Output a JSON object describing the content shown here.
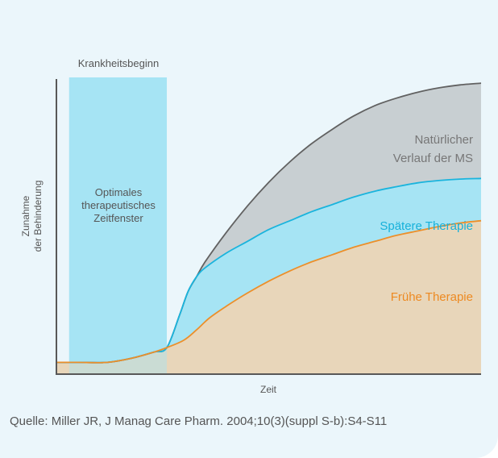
{
  "chart_data": {
    "type": "area",
    "title": "",
    "xlabel": "Zeit",
    "ylabel": [
      "Zunahme",
      "der Behinderung"
    ],
    "xlim": [
      0,
      100
    ],
    "ylim": [
      0,
      100
    ],
    "window": {
      "name": "window",
      "x_range": [
        3,
        26
      ],
      "top_label": "Krankheitsbeginn",
      "label_lines": [
        "Optimales",
        "therapeutisches",
        "Zeitfenster"
      ],
      "color": "#a6e4f4"
    },
    "series": [
      {
        "name": "natural",
        "label_lines": [
          "Natürlicher",
          "Verlauf der MS"
        ],
        "line_color": "#616161",
        "fill_color": "#c8cfd2",
        "text_color": "#777777",
        "points": [
          [
            0,
            4
          ],
          [
            5,
            4
          ],
          [
            12,
            4
          ],
          [
            18,
            5.5
          ],
          [
            23,
            7.5
          ],
          [
            26,
            9
          ],
          [
            29,
            20
          ],
          [
            31,
            28
          ],
          [
            33,
            33
          ],
          [
            35,
            38
          ],
          [
            40,
            48
          ],
          [
            45,
            57
          ],
          [
            50,
            65
          ],
          [
            55,
            72
          ],
          [
            60,
            78
          ],
          [
            65,
            83
          ],
          [
            70,
            87.5
          ],
          [
            75,
            91
          ],
          [
            80,
            93.5
          ],
          [
            85,
            95.5
          ],
          [
            90,
            97
          ],
          [
            95,
            98
          ],
          [
            100,
            98.6
          ]
        ]
      },
      {
        "name": "later",
        "label_lines": [
          "Spätere Therapie"
        ],
        "line_color": "#1ab4dd",
        "fill_color": "#a6e4f4",
        "text_color": "#17b1da",
        "points": [
          [
            0,
            4
          ],
          [
            5,
            4
          ],
          [
            12,
            4
          ],
          [
            18,
            5.5
          ],
          [
            23,
            7.5
          ],
          [
            26,
            9
          ],
          [
            29,
            20
          ],
          [
            31,
            28
          ],
          [
            33,
            33
          ],
          [
            35,
            36
          ],
          [
            40,
            41
          ],
          [
            45,
            45
          ],
          [
            50,
            49
          ],
          [
            55,
            52
          ],
          [
            60,
            55
          ],
          [
            65,
            57.5
          ],
          [
            70,
            60
          ],
          [
            75,
            62
          ],
          [
            80,
            63.5
          ],
          [
            85,
            64.8
          ],
          [
            90,
            65.6
          ],
          [
            95,
            66.1
          ],
          [
            100,
            66.3
          ]
        ]
      },
      {
        "name": "early",
        "label_lines": [
          "Frühe Therapie"
        ],
        "line_color": "#ec8f2a",
        "fill_color": "#e8d6ba",
        "text_color": "#ed8a22",
        "points": [
          [
            0,
            4
          ],
          [
            5,
            4
          ],
          [
            12,
            4
          ],
          [
            18,
            5.5
          ],
          [
            23,
            7.5
          ],
          [
            26,
            9
          ],
          [
            30,
            11.5
          ],
          [
            33,
            15
          ],
          [
            36,
            19
          ],
          [
            40,
            23
          ],
          [
            45,
            27.5
          ],
          [
            50,
            31.5
          ],
          [
            55,
            35
          ],
          [
            60,
            38
          ],
          [
            65,
            40.5
          ],
          [
            70,
            43
          ],
          [
            75,
            45
          ],
          [
            80,
            47
          ],
          [
            85,
            48.5
          ],
          [
            90,
            50
          ],
          [
            95,
            51.2
          ],
          [
            100,
            52
          ]
        ]
      }
    ]
  },
  "footer": {
    "source": "Quelle: Miller JR, J Manag Care Pharm. 2004;10(3)(suppl S-b):S4-S11"
  },
  "colors": {
    "background": "#ebf6fb",
    "axis": "#585858",
    "text": "#555555"
  }
}
